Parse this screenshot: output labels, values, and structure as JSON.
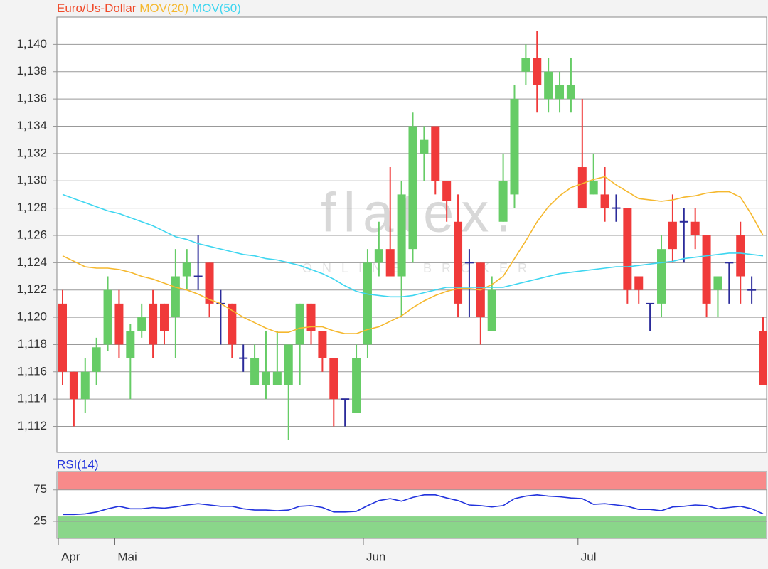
{
  "chart_data": [
    {
      "type": "candlestick",
      "watermark": {
        "title": "flatex.",
        "subtitle": "ONLINE BROKER"
      },
      "categories": [
        "Apr",
        null,
        null,
        null,
        null,
        "Mai",
        null,
        null,
        null,
        null,
        null,
        null,
        null,
        null,
        null,
        null,
        null,
        null,
        null,
        null,
        null,
        null,
        null,
        null,
        null,
        null,
        null,
        "Jun",
        null,
        null,
        null,
        null,
        null,
        null,
        null,
        null,
        null,
        null,
        null,
        null,
        null,
        null,
        null,
        null,
        null,
        null,
        "Jul",
        null,
        null,
        null,
        null,
        null,
        null,
        null,
        null,
        null,
        null,
        null,
        null,
        null,
        null,
        null,
        null
      ],
      "ylim": [
        1.1101,
        1.142
      ],
      "yticks": [
        {
          "value": 1.112,
          "label": "1,112"
        },
        {
          "value": 1.114,
          "label": "1,114"
        },
        {
          "value": 1.116,
          "label": "1,116"
        },
        {
          "value": 1.118,
          "label": "1,118"
        },
        {
          "value": 1.12,
          "label": "1,120"
        },
        {
          "value": 1.122,
          "label": "1,122"
        },
        {
          "value": 1.124,
          "label": "1,124"
        },
        {
          "value": 1.126,
          "label": "1,126"
        },
        {
          "value": 1.128,
          "label": "1,128"
        },
        {
          "value": 1.13,
          "label": "1,130"
        },
        {
          "value": 1.132,
          "label": "1,132"
        },
        {
          "value": 1.134,
          "label": "1,134"
        },
        {
          "value": 1.136,
          "label": "1,136"
        },
        {
          "value": 1.138,
          "label": "1,138"
        },
        {
          "value": 1.14,
          "label": "1,140"
        }
      ],
      "grid": true,
      "series": [
        {
          "name": "Euro/Us-Dollar",
          "color": "#f04a2a",
          "up_color": "#66cc66",
          "down_color": "#f03a3a",
          "doji_color": "#2b2b9a",
          "open": [
            1.121,
            1.116,
            1.114,
            1.116,
            1.118,
            1.121,
            1.117,
            1.119,
            1.121,
            1.121,
            1.12,
            1.123,
            1.123,
            1.124,
            1.121,
            1.121,
            1.117,
            1.115,
            1.115,
            1.115,
            1.115,
            1.118,
            1.121,
            1.119,
            1.117,
            1.114,
            1.113,
            1.118,
            1.124,
            1.125,
            1.123,
            1.125,
            1.132,
            1.134,
            1.13,
            1.127,
            1.124,
            1.124,
            1.119,
            1.127,
            1.129,
            1.138,
            1.139,
            1.136,
            1.136,
            1.136,
            1.131,
            1.129,
            1.129,
            1.128,
            1.128,
            1.123,
            1.121,
            1.121,
            1.127,
            1.127,
            1.127,
            1.126,
            1.122,
            1.124,
            1.126,
            1.122,
            1.119
          ],
          "high": [
            1.122,
            1.116,
            1.117,
            1.1185,
            1.123,
            1.122,
            1.1195,
            1.121,
            1.122,
            1.121,
            1.125,
            1.125,
            1.126,
            1.124,
            1.122,
            1.121,
            1.118,
            1.118,
            1.119,
            1.119,
            1.118,
            1.121,
            1.121,
            1.119,
            1.117,
            1.114,
            1.118,
            1.125,
            1.127,
            1.131,
            1.13,
            1.135,
            1.134,
            1.134,
            1.13,
            1.129,
            1.125,
            1.124,
            1.123,
            1.132,
            1.137,
            1.14,
            1.141,
            1.139,
            1.138,
            1.139,
            1.136,
            1.132,
            1.131,
            1.129,
            1.128,
            1.123,
            1.121,
            1.126,
            1.129,
            1.128,
            1.128,
            1.126,
            1.123,
            1.124,
            1.127,
            1.123,
            1.12
          ],
          "low": [
            1.115,
            1.112,
            1.113,
            1.115,
            1.1175,
            1.117,
            1.114,
            1.1185,
            1.117,
            1.118,
            1.117,
            1.122,
            1.122,
            1.12,
            1.118,
            1.117,
            1.116,
            1.115,
            1.114,
            1.115,
            1.111,
            1.115,
            1.118,
            1.116,
            1.112,
            1.112,
            1.113,
            1.117,
            1.123,
            1.123,
            1.12,
            1.124,
            1.13,
            1.129,
            1.127,
            1.12,
            1.12,
            1.118,
            1.119,
            1.127,
            1.128,
            1.137,
            1.135,
            1.135,
            1.135,
            1.135,
            1.128,
            1.129,
            1.127,
            1.127,
            1.121,
            1.121,
            1.119,
            1.12,
            1.124,
            1.124,
            1.125,
            1.12,
            1.12,
            1.121,
            1.121,
            1.121,
            1.115
          ],
          "close": [
            1.116,
            1.114,
            1.116,
            1.1178,
            1.122,
            1.118,
            1.119,
            1.12,
            1.118,
            1.119,
            1.123,
            1.124,
            1.123,
            1.121,
            1.121,
            1.118,
            1.117,
            1.117,
            1.116,
            1.116,
            1.118,
            1.121,
            1.119,
            1.117,
            1.114,
            1.114,
            1.117,
            1.124,
            1.125,
            1.123,
            1.129,
            1.134,
            1.133,
            1.13,
            1.1285,
            1.121,
            1.124,
            1.12,
            1.122,
            1.13,
            1.136,
            1.139,
            1.137,
            1.138,
            1.137,
            1.137,
            1.128,
            1.13,
            1.128,
            1.128,
            1.122,
            1.122,
            1.121,
            1.125,
            1.125,
            1.127,
            1.126,
            1.121,
            1.123,
            1.124,
            1.123,
            1.122,
            1.115
          ]
        },
        {
          "name": "MOV(20)",
          "color": "#f5b82e",
          "values": [
            1.1245,
            1.1241,
            1.1237,
            1.1236,
            1.1236,
            1.1235,
            1.1233,
            1.123,
            1.1228,
            1.1225,
            1.1222,
            1.122,
            1.1217,
            1.1213,
            1.121,
            1.1205,
            1.12,
            1.1196,
            1.1192,
            1.1189,
            1.1189,
            1.1192,
            1.1193,
            1.1193,
            1.119,
            1.1188,
            1.1188,
            1.1191,
            1.1193,
            1.1197,
            1.1201,
            1.1207,
            1.1212,
            1.1216,
            1.1219,
            1.1221,
            1.1221,
            1.122,
            1.1224,
            1.123,
            1.1243,
            1.1256,
            1.127,
            1.1281,
            1.1289,
            1.1295,
            1.1298,
            1.1301,
            1.1303,
            1.1297,
            1.1292,
            1.1287,
            1.1286,
            1.1285,
            1.1286,
            1.1288,
            1.1289,
            1.1291,
            1.1292,
            1.1292,
            1.1288,
            1.1275,
            1.126
          ]
        },
        {
          "name": "MOV(50)",
          "color": "#3ed6f0",
          "values": [
            1.129,
            1.1287,
            1.1284,
            1.1281,
            1.1278,
            1.1276,
            1.1273,
            1.127,
            1.1267,
            1.1263,
            1.1259,
            1.1257,
            1.1254,
            1.1252,
            1.125,
            1.1248,
            1.1246,
            1.1245,
            1.1243,
            1.1242,
            1.124,
            1.1238,
            1.1235,
            1.1232,
            1.1228,
            1.1223,
            1.1219,
            1.1217,
            1.1216,
            1.1215,
            1.1215,
            1.1216,
            1.1218,
            1.122,
            1.1222,
            1.1222,
            1.1222,
            1.1222,
            1.1222,
            1.1222,
            1.1224,
            1.1226,
            1.1228,
            1.123,
            1.1232,
            1.1233,
            1.1234,
            1.1235,
            1.1236,
            1.1237,
            1.1237,
            1.1238,
            1.1239,
            1.124,
            1.1241,
            1.1243,
            1.1244,
            1.1245,
            1.1246,
            1.1247,
            1.1247,
            1.1246,
            1.1245
          ]
        }
      ]
    },
    {
      "type": "line",
      "ylim": [
        -2,
        104
      ],
      "yticks": [
        25,
        75
      ],
      "upper_color": "#f88a8a",
      "lower_color": "#8ad68a",
      "series": [
        {
          "name": "RSI(14)",
          "color": "#2233dd",
          "values": [
            36,
            36,
            37,
            40,
            45,
            49,
            45,
            45,
            47,
            46,
            48,
            51,
            53,
            51,
            49,
            49,
            45,
            43,
            43,
            42,
            43,
            49,
            50,
            47,
            40,
            40,
            41,
            50,
            58,
            61,
            57,
            63,
            67,
            67,
            62,
            58,
            51,
            50,
            48,
            50,
            61,
            65,
            67,
            65,
            64,
            62,
            61,
            52,
            53,
            51,
            49,
            44,
            44,
            42,
            48,
            49,
            51,
            50,
            45,
            47,
            49,
            45,
            37
          ]
        }
      ]
    }
  ]
}
